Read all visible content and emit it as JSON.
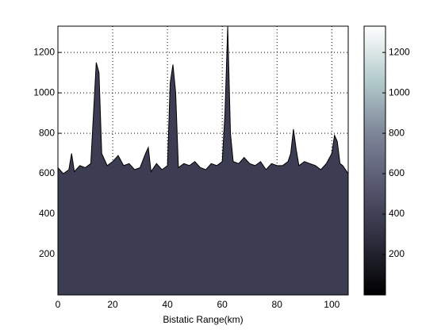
{
  "chart_data": {
    "type": "area",
    "xlabel": "Bistatic Range(km)",
    "x": [
      0,
      2,
      4,
      5,
      6,
      8,
      10,
      12,
      13,
      14,
      15,
      16,
      18,
      20,
      22,
      24,
      26,
      28,
      30,
      32,
      33,
      34,
      36,
      38,
      40,
      41,
      42,
      43,
      44,
      46,
      48,
      50,
      52,
      54,
      56,
      58,
      60,
      61,
      62,
      63,
      64,
      66,
      68,
      70,
      72,
      74,
      76,
      78,
      80,
      82,
      84,
      85,
      86,
      87,
      88,
      90,
      92,
      94,
      96,
      98,
      100,
      101,
      102,
      103,
      104,
      106
    ],
    "values": [
      630,
      600,
      620,
      700,
      610,
      640,
      630,
      650,
      900,
      1150,
      1100,
      700,
      640,
      660,
      690,
      640,
      650,
      620,
      630,
      700,
      730,
      610,
      650,
      620,
      640,
      1050,
      1140,
      1000,
      630,
      650,
      640,
      660,
      630,
      620,
      650,
      640,
      660,
      900,
      1330,
      800,
      660,
      650,
      680,
      650,
      640,
      660,
      620,
      650,
      640,
      640,
      660,
      700,
      820,
      720,
      640,
      660,
      650,
      640,
      620,
      650,
      700,
      790,
      760,
      650,
      640,
      600
    ],
    "color": "#3c3c52",
    "xlim": [
      0,
      106
    ],
    "ylim": [
      0,
      1330
    ],
    "xticks": [
      0,
      20,
      40,
      60,
      80,
      100
    ],
    "yticks": [
      200,
      400,
      600,
      800,
      1000,
      1200
    ],
    "grid": true,
    "colorbar": {
      "lim": [
        0,
        1330
      ],
      "ticks": [
        200,
        400,
        600,
        800,
        1000,
        1200
      ],
      "colormap": [
        "#000000",
        "#2c2c3c",
        "#55556e",
        "#7d8598",
        "#b4cccc",
        "#ffffff"
      ]
    }
  }
}
